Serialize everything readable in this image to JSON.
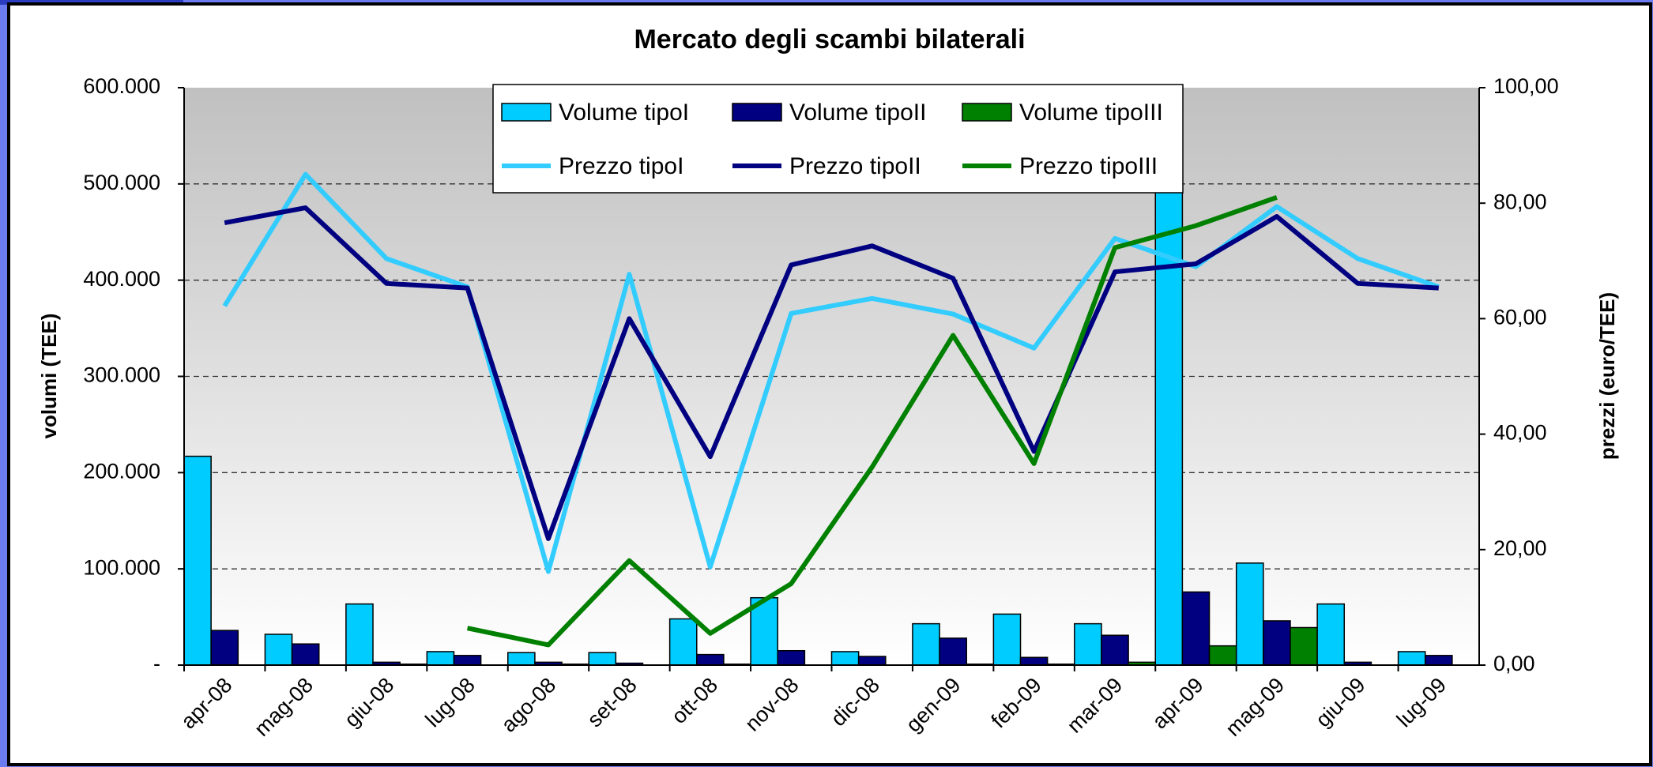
{
  "chart_data": {
    "type": "bar_line",
    "title": "Mercato degli scambi bilaterali",
    "ylabel": "volumi (TEE)",
    "y2label": "prezzi (euro/TEE)",
    "categories": [
      "apr-08",
      "mag-08",
      "giu-08",
      "lug-08",
      "ago-08",
      "set-08",
      "ott-08",
      "nov-08",
      "dic-08",
      "gen-09",
      "feb-09",
      "mar-09",
      "apr-09",
      "mag-09",
      "giu-09",
      "lug-09"
    ],
    "series": [
      {
        "name": "Volume tipoI",
        "type": "bar",
        "color": "#00ccff",
        "values": [
          217000,
          32000,
          63500,
          14000,
          13000,
          13000,
          48000,
          70000,
          14000,
          43000,
          53000,
          43000,
          508000,
          106000,
          63500,
          14000
        ]
      },
      {
        "name": "Volume tipoII",
        "type": "bar",
        "color": "#000080",
        "values": [
          36000,
          22000,
          3000,
          10000,
          3000,
          2000,
          11000,
          15000,
          9000,
          28000,
          8000,
          31000,
          76000,
          46000,
          3000,
          10000
        ]
      },
      {
        "name": "Volume tipoIII",
        "type": "bar",
        "color": "#008000",
        "values": [
          0,
          0,
          1000,
          0,
          1000,
          0,
          1000,
          0,
          0,
          1000,
          1000,
          3000,
          20000,
          39000,
          0,
          0
        ]
      },
      {
        "name": "Prezzo tipoI",
        "type": "line",
        "axis": "y2",
        "color": "#33ccff",
        "values": [
          62.2,
          85.0,
          70.4,
          65.5,
          16.2,
          67.7,
          17.0,
          60.9,
          63.5,
          60.8,
          54.9,
          73.9,
          69.0,
          79.4,
          70.4,
          65.5
        ]
      },
      {
        "name": "Prezzo tipoII",
        "type": "line",
        "axis": "y2",
        "color": "#000080",
        "values": [
          76.6,
          79.2,
          66.1,
          65.3,
          21.9,
          60.0,
          36.1,
          69.3,
          72.6,
          67.0,
          37.0,
          68.1,
          69.5,
          77.7,
          66.1,
          65.3
        ]
      },
      {
        "name": "Prezzo tipoIII",
        "type": "line",
        "axis": "y2",
        "color": "#008000",
        "values": [
          null,
          null,
          null,
          6.4,
          3.5,
          18.1,
          5.5,
          14.1,
          34.3,
          57.1,
          34.9,
          72.3,
          76.1,
          81.0,
          null,
          null
        ]
      }
    ],
    "ylim": [
      0,
      600000
    ],
    "yticks": [
      {
        "value": 0,
        "label": "-"
      },
      {
        "value": 100000,
        "label": "100.000"
      },
      {
        "value": 200000,
        "label": "200.000"
      },
      {
        "value": 300000,
        "label": "300.000"
      },
      {
        "value": 400000,
        "label": "400.000"
      },
      {
        "value": 500000,
        "label": "500.000"
      },
      {
        "value": 600000,
        "label": "600.000"
      }
    ],
    "y2lim": [
      0,
      100
    ],
    "y2ticks": [
      {
        "value": 0,
        "label": "0,00"
      },
      {
        "value": 20,
        "label": "20,00"
      },
      {
        "value": 40,
        "label": "40,00"
      },
      {
        "value": 60,
        "label": "60,00"
      },
      {
        "value": 80,
        "label": "80,00"
      },
      {
        "value": 100,
        "label": "100,00"
      }
    ],
    "grid": true,
    "legend": "top"
  }
}
